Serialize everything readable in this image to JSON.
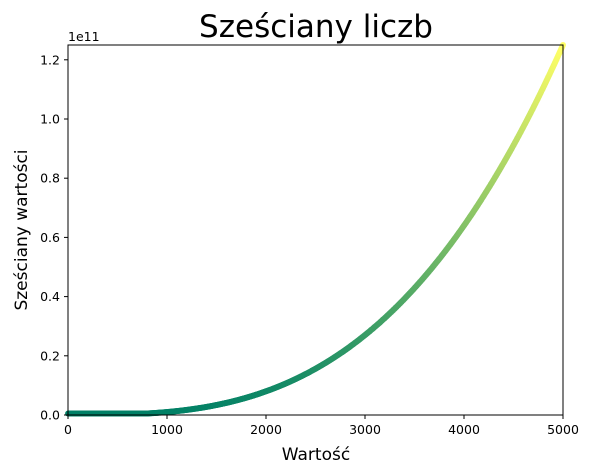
{
  "chart_data": {
    "type": "scatter",
    "title": "Sześciany liczb",
    "xlabel": "Wartość",
    "ylabel": "Sześciany wartości",
    "xlim": [
      0,
      5000
    ],
    "ylim": [
      0,
      125000000000
    ],
    "y_offset_text": "1e11",
    "x_ticks": [
      {
        "value": 0,
        "label": "0"
      },
      {
        "value": 1000,
        "label": "1000"
      },
      {
        "value": 2000,
        "label": "2000"
      },
      {
        "value": 3000,
        "label": "3000"
      },
      {
        "value": 4000,
        "label": "4000"
      },
      {
        "value": 5000,
        "label": "5000"
      }
    ],
    "y_ticks": [
      {
        "value": 0,
        "label": "0.0"
      },
      {
        "value": 20000000000,
        "label": "0.2"
      },
      {
        "value": 40000000000,
        "label": "0.4"
      },
      {
        "value": 60000000000,
        "label": "0.6"
      },
      {
        "value": 80000000000,
        "label": "0.8"
      },
      {
        "value": 100000000000,
        "label": "1.0"
      },
      {
        "value": 120000000000,
        "label": "1.2"
      }
    ],
    "series": [
      {
        "function": "y = x^3",
        "x_start": 1,
        "x_end": 5000,
        "colormap": "summer",
        "color_start": "#008066",
        "color_end": "#ffff66"
      }
    ],
    "grid": false,
    "legend": "none"
  }
}
